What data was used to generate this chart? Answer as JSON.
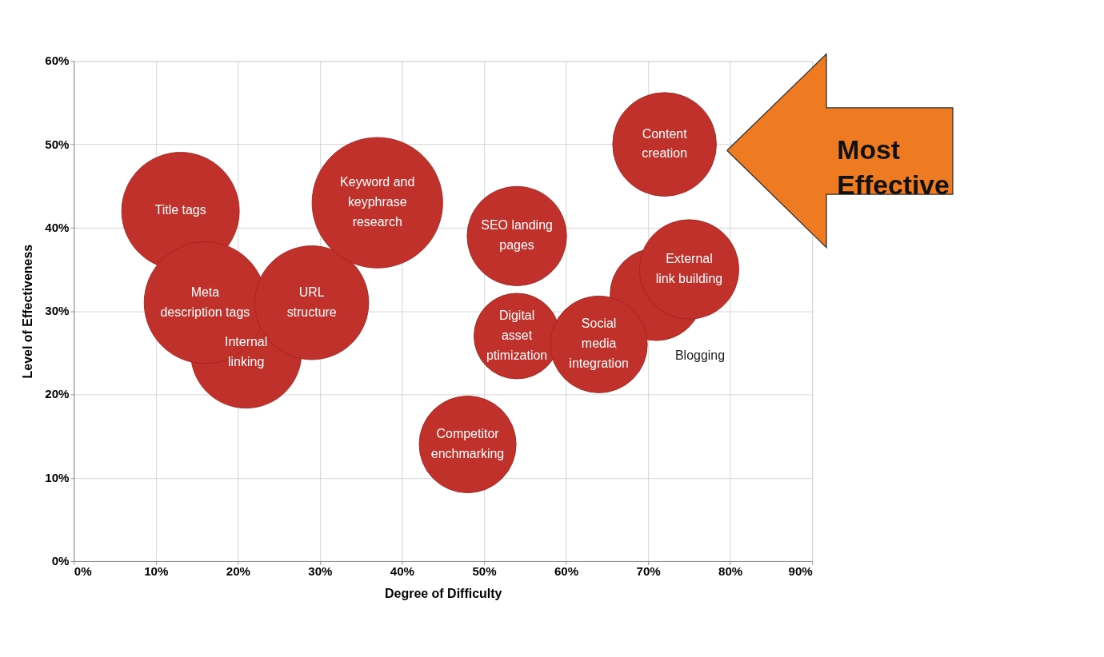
{
  "chart_data": {
    "type": "bubble",
    "xlabel": "Degree of Difficulty",
    "ylabel": "Level of Effectiveness",
    "xlim": [
      0,
      90
    ],
    "ylim": [
      0,
      60
    ],
    "xticks": [
      {
        "value": 0,
        "label": "0%"
      },
      {
        "value": 10,
        "label": "10%"
      },
      {
        "value": 20,
        "label": "20%"
      },
      {
        "value": 30,
        "label": "30%"
      },
      {
        "value": 40,
        "label": "40%"
      },
      {
        "value": 50,
        "label": "50%"
      },
      {
        "value": 60,
        "label": "60%"
      },
      {
        "value": 70,
        "label": "70%"
      },
      {
        "value": 80,
        "label": "80%"
      },
      {
        "value": 90,
        "label": "90%"
      }
    ],
    "yticks": [
      {
        "value": 0,
        "label": "0%"
      },
      {
        "value": 10,
        "label": "10%"
      },
      {
        "value": 20,
        "label": "20%"
      },
      {
        "value": 30,
        "label": "30%"
      },
      {
        "value": 40,
        "label": "40%"
      },
      {
        "value": 50,
        "label": "50%"
      },
      {
        "value": 60,
        "label": "60%"
      }
    ],
    "grid": true,
    "legend": false,
    "series": [
      {
        "name": "Internal\nlinking",
        "color": "#c1312b",
        "x": [
          21
        ],
        "values": [
          25
        ],
        "sizes": [
          0.72
        ]
      },
      {
        "name": "Title tags",
        "color": "#c1312b",
        "x": [
          13
        ],
        "values": [
          42
        ],
        "sizes": [
          0.81
        ]
      },
      {
        "name": "Meta\ndescription tags",
        "color": "#c1312b",
        "x": [
          16
        ],
        "values": [
          31
        ],
        "sizes": [
          0.87
        ]
      },
      {
        "name": "URL\nstructure",
        "color": "#c1312b",
        "x": [
          29
        ],
        "values": [
          31
        ],
        "sizes": [
          0.76
        ]
      },
      {
        "name": "Keyword and\nkeyphrase\nresearch",
        "color": "#c1312b",
        "x": [
          37
        ],
        "values": [
          43
        ],
        "sizes": [
          1
        ]
      },
      {
        "name": "Competitor\nenchmarking",
        "color": "#c1312b",
        "x": [
          48
        ],
        "values": [
          14
        ],
        "sizes": [
          0.55
        ]
      },
      {
        "name": "SEO landing\npages",
        "color": "#c1312b",
        "x": [
          54
        ],
        "values": [
          39
        ],
        "sizes": [
          0.58
        ]
      },
      {
        "name": "Digital\nasset\nptimization",
        "color": "#c1312b",
        "x": [
          54
        ],
        "values": [
          27
        ],
        "sizes": [
          0.43
        ]
      },
      {
        "color": "#c1312b",
        "x": [
          71
        ],
        "values": [
          32
        ],
        "sizes": [
          0.5
        ]
      },
      {
        "name": "External\nlink building",
        "color": "#c1312b",
        "x": [
          75
        ],
        "values": [
          35
        ],
        "sizes": [
          0.58
        ]
      },
      {
        "name": "Social\nmedia\nintegration",
        "color": "#c1312b",
        "x": [
          64
        ],
        "values": [
          26
        ],
        "sizes": [
          0.55
        ]
      },
      {
        "name": "Content\ncreation",
        "color": "#c1312b",
        "x": [
          72
        ],
        "values": [
          50
        ],
        "sizes": [
          0.63
        ]
      }
    ],
    "annotations": [
      "Blogging",
      "Most\nEffective"
    ]
  }
}
